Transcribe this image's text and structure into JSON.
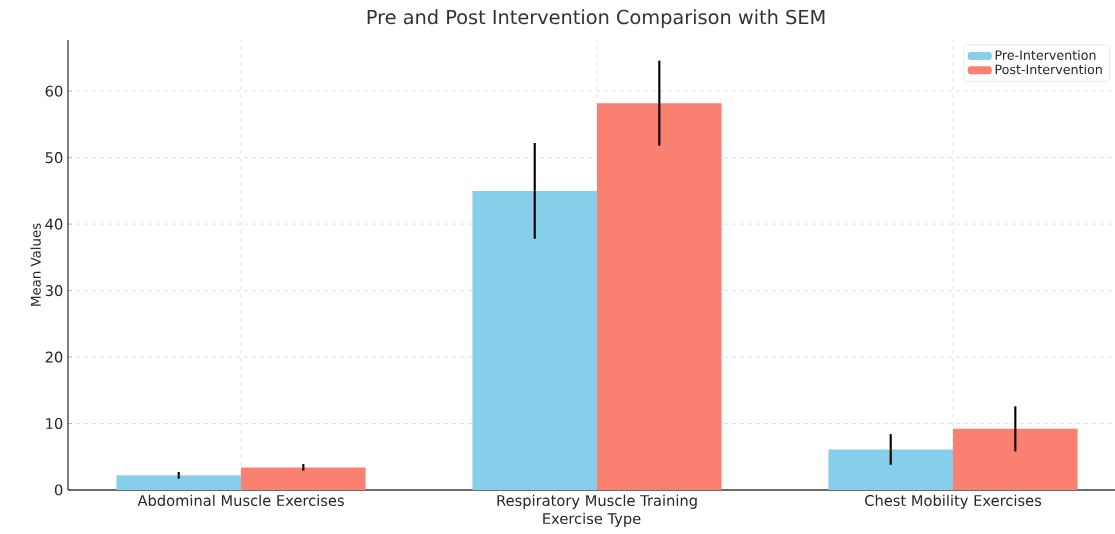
{
  "chart_data": {
    "type": "bar",
    "title": "Pre and Post Intervention Comparison with SEM",
    "xlabel": "Exercise Type",
    "ylabel": "Mean Values",
    "categories": [
      "Abdominal Muscle Exercises",
      "Respiratory Muscle Training",
      "Chest Mobility Exercises"
    ],
    "series": [
      {
        "name": "Pre-Intervention",
        "color": "#87ceeb",
        "values": [
          2.2,
          45.0,
          6.1
        ],
        "errors": [
          0.5,
          7.2,
          2.3
        ]
      },
      {
        "name": "Post-Intervention",
        "color": "#fa8072",
        "values": [
          3.4,
          58.2,
          9.2
        ],
        "errors": [
          0.5,
          6.4,
          3.4
        ]
      }
    ],
    "ylim": [
      0,
      67.7
    ],
    "yticks": [
      0,
      10,
      20,
      30,
      40,
      50,
      60
    ],
    "grid": true,
    "legend": "top right"
  }
}
